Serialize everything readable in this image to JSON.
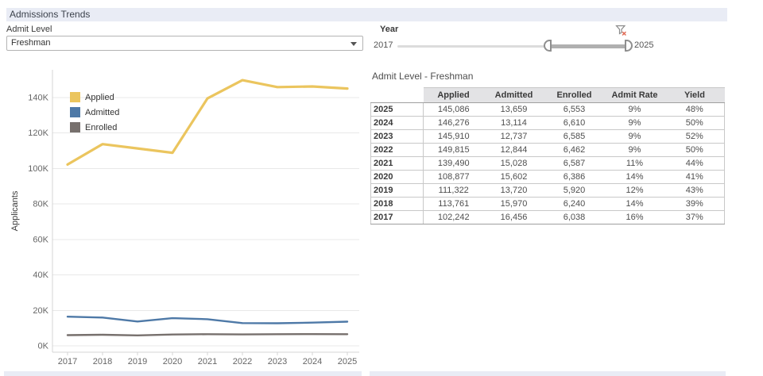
{
  "title": "Admissions Trends",
  "filters": {
    "admit_level": {
      "label": "Admit Level",
      "value": "Freshman",
      "caret_icon": "caret-down"
    },
    "year": {
      "label": "Year",
      "start": "2017",
      "end": "2025",
      "clear_icon": "filter-clear"
    }
  },
  "colors": {
    "applied": "#ebc55e",
    "admitted": "#4e79a7",
    "enrolled": "#77706d",
    "zone_bg": "#e9ecf5",
    "filter_clear_x": "#e06a55"
  },
  "chart_data": {
    "type": "line",
    "x": [
      2017,
      2018,
      2019,
      2020,
      2021,
      2022,
      2023,
      2024,
      2025
    ],
    "series": [
      {
        "name": "Applied",
        "color": "#ebc55e",
        "values": [
          102242,
          113761,
          111322,
          108877,
          139490,
          149815,
          145910,
          146276,
          145086
        ]
      },
      {
        "name": "Admitted",
        "color": "#4e79a7",
        "values": [
          16456,
          15970,
          13720,
          15602,
          15028,
          12844,
          12737,
          13114,
          13659
        ]
      },
      {
        "name": "Enrolled",
        "color": "#77706d",
        "values": [
          6038,
          6240,
          5920,
          6386,
          6587,
          6462,
          6585,
          6610,
          6553
        ]
      }
    ],
    "ylabel": "Applicants",
    "xlabel": "",
    "ylim": [
      0,
      156000
    ],
    "yticks": {
      "values": [
        0,
        20000,
        40000,
        60000,
        80000,
        100000,
        120000,
        140000
      ],
      "labels": [
        "0K",
        "20K",
        "40K",
        "60K",
        "80K",
        "100K",
        "120K",
        "140K"
      ]
    },
    "grid": true,
    "legend_position": "top-left-inside"
  },
  "table": {
    "title": "Admit Level - Freshman",
    "columns": [
      "Applied",
      "Admitted",
      "Enrolled",
      "Admit Rate",
      "Yield"
    ],
    "rows": [
      {
        "year": "2025",
        "values": [
          "145,086",
          "13,659",
          "6,553",
          "9%",
          "48%"
        ]
      },
      {
        "year": "2024",
        "values": [
          "146,276",
          "13,114",
          "6,610",
          "9%",
          "50%"
        ]
      },
      {
        "year": "2023",
        "values": [
          "145,910",
          "12,737",
          "6,585",
          "9%",
          "52%"
        ]
      },
      {
        "year": "2022",
        "values": [
          "149,815",
          "12,844",
          "6,462",
          "9%",
          "50%"
        ]
      },
      {
        "year": "2021",
        "values": [
          "139,490",
          "15,028",
          "6,587",
          "11%",
          "44%"
        ]
      },
      {
        "year": "2020",
        "values": [
          "108,877",
          "15,602",
          "6,386",
          "14%",
          "41%"
        ]
      },
      {
        "year": "2019",
        "values": [
          "111,322",
          "13,720",
          "5,920",
          "12%",
          "43%"
        ]
      },
      {
        "year": "2018",
        "values": [
          "113,761",
          "15,970",
          "6,240",
          "14%",
          "39%"
        ]
      },
      {
        "year": "2017",
        "values": [
          "102,242",
          "16,456",
          "6,038",
          "16%",
          "37%"
        ]
      }
    ]
  }
}
